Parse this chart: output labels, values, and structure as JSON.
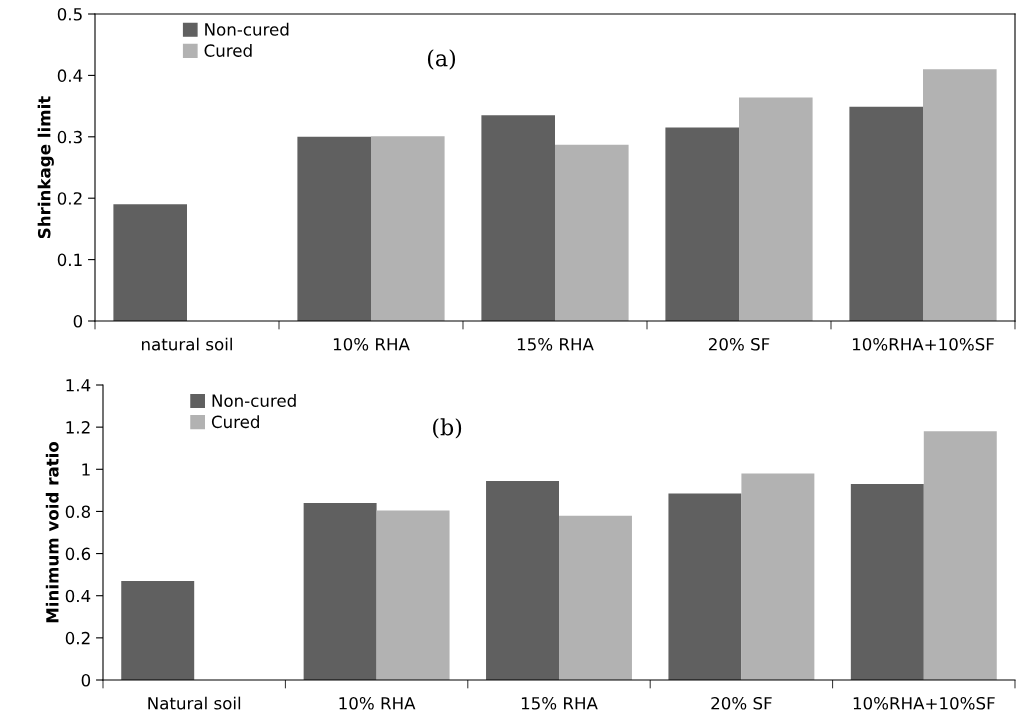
{
  "chart_data": [
    {
      "type": "bar",
      "ylabel": "Shrinkage limit",
      "categories": [
        "natural soil",
        "10% RHA",
        "15% RHA",
        "20% SF",
        "10%RHA+10%SF"
      ],
      "series": [
        {
          "name": "Non-cured",
          "color": "#606060",
          "values": [
            0.19,
            0.3,
            0.335,
            0.315,
            0.349
          ]
        },
        {
          "name": "Cured",
          "color": "#b2b2b2",
          "values": [
            null,
            0.301,
            0.287,
            0.364,
            0.41
          ]
        }
      ],
      "ylim": [
        0,
        0.5
      ],
      "yticks": [
        0,
        0.1,
        0.2,
        0.3,
        0.4,
        0.5
      ],
      "grid": false,
      "legend": "top left",
      "annotations": [
        "(a)"
      ]
    },
    {
      "type": "bar",
      "ylabel": "Minimum void ratio",
      "categories": [
        "Natural soil",
        "10% RHA",
        "15% RHA",
        "20% SF",
        "10%RHA+10%SF"
      ],
      "series": [
        {
          "name": "Non-cured",
          "color": "#606060",
          "values": [
            0.47,
            0.84,
            0.945,
            0.885,
            0.93
          ]
        },
        {
          "name": "Cured",
          "color": "#b2b2b2",
          "values": [
            null,
            0.805,
            0.78,
            0.98,
            1.18
          ]
        }
      ],
      "ylim": [
        0,
        1.4
      ],
      "yticks": [
        0,
        0.2,
        0.4,
        0.6,
        0.8,
        1,
        1.2,
        1.4
      ],
      "grid": false,
      "legend": "top left",
      "annotations": [
        "(b)"
      ]
    }
  ]
}
